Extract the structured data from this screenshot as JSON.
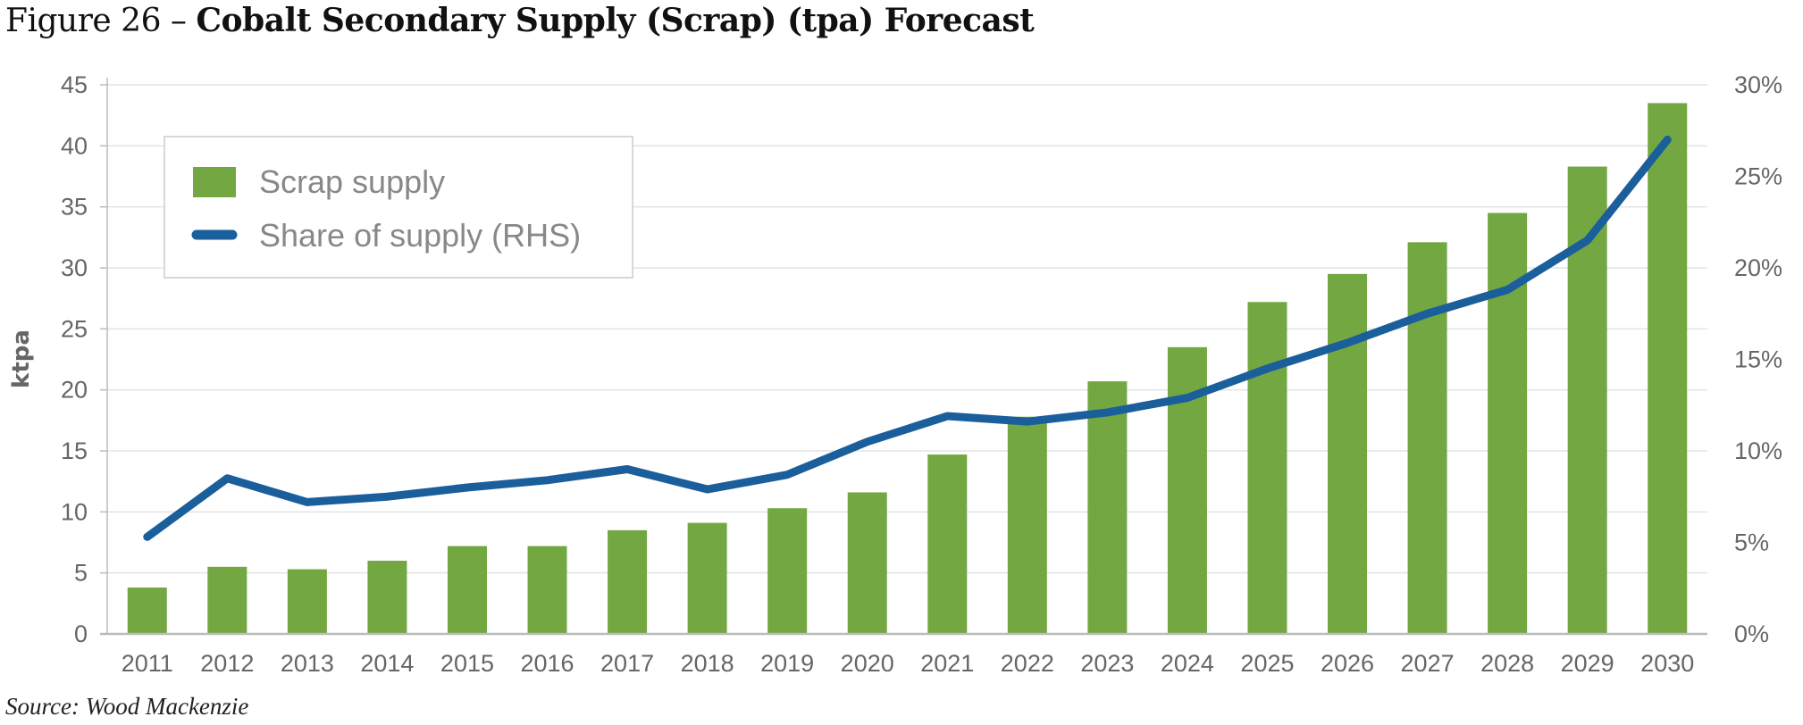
{
  "title": {
    "prefix": "Figure 26 –",
    "main": "Cobalt Secondary Supply (Scrap) (tpa) Forecast"
  },
  "source": "Source: Wood Mackenzie",
  "chart_data": {
    "type": "bar+line",
    "categories": [
      "2011",
      "2012",
      "2013",
      "2014",
      "2015",
      "2016",
      "2017",
      "2018",
      "2019",
      "2020",
      "2021",
      "2022",
      "2023",
      "2024",
      "2025",
      "2026",
      "2027",
      "2028",
      "2029",
      "2030"
    ],
    "series": [
      {
        "name": "Scrap supply",
        "type": "bar",
        "axis": "left",
        "color": "#72a741",
        "values": [
          3.8,
          5.5,
          5.3,
          6.0,
          7.2,
          7.2,
          8.5,
          9.1,
          10.3,
          11.6,
          14.7,
          17.8,
          20.7,
          23.5,
          27.2,
          29.5,
          32.1,
          34.5,
          38.3,
          43.5
        ]
      },
      {
        "name": "Share of supply (RHS)",
        "type": "line",
        "axis": "right",
        "color": "#1a5e9c",
        "values": [
          5.3,
          8.5,
          7.2,
          7.5,
          8.0,
          8.4,
          9.0,
          7.9,
          8.7,
          10.5,
          11.9,
          11.6,
          12.1,
          12.9,
          14.5,
          15.9,
          17.5,
          18.8,
          21.5,
          27.0
        ]
      }
    ],
    "ylabel": "ktpa",
    "ylim": [
      0,
      45
    ],
    "yticks": [
      "0",
      "5",
      "10",
      "15",
      "20",
      "25",
      "30",
      "35",
      "40",
      "45"
    ],
    "y2lim": [
      0,
      30
    ],
    "y2ticks": [
      "0%",
      "5%",
      "10%",
      "15%",
      "20%",
      "25%",
      "30%"
    ],
    "grid": true,
    "legend": "top-left"
  }
}
